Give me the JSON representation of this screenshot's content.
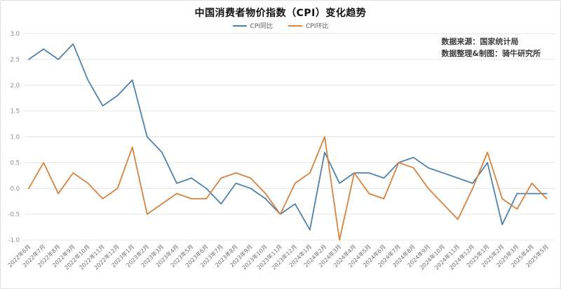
{
  "title": "中国消费者物价指数（CPI）变化趋势",
  "legend": {
    "items": [
      {
        "label": "CPI同比",
        "color": "#4e81ae"
      },
      {
        "label": "CPI环比",
        "color": "#d9823b"
      }
    ]
  },
  "annotations": {
    "source": "数据来源：国家统计局",
    "credit": "数据整理&制图：骑牛研究所"
  },
  "chart_data": {
    "type": "line",
    "title": "中国消费者物价指数（CPI）变化趋势",
    "xlabel": "",
    "ylabel": "",
    "ylim": [
      -1.0,
      3.0
    ],
    "ytick_step": 0.5,
    "yticks": [
      "3.0",
      "2.5",
      "2.0",
      "1.5",
      "1.0",
      "0.5",
      "0.0",
      "-0.5",
      "-1.0"
    ],
    "grid": true,
    "legend_position": "top",
    "categories": [
      "2022年6月",
      "2022年7月",
      "2022年8月",
      "2022年9月",
      "2022年10月",
      "2022年11月",
      "2022年12月",
      "2023年1月",
      "2023年2月",
      "2023年3月",
      "2023年4月",
      "2023年5月",
      "2023年6月",
      "2023年7月",
      "2023年8月",
      "2023年9月",
      "2023年10月",
      "2023年11月",
      "2023年12月",
      "2024年1月",
      "2024年2月",
      "2024年3月",
      "2024年4月",
      "2024年5月",
      "2024年6月",
      "2024年7月",
      "2024年8月",
      "2024年9月",
      "2024年10月",
      "2024年11月",
      "2024年12月",
      "2025年1月",
      "2025年2月",
      "2025年3月",
      "2025年4月",
      "2025年5月"
    ],
    "series": [
      {
        "name": "CPI同比",
        "color": "#4e81ae",
        "values": [
          2.5,
          2.7,
          2.5,
          2.8,
          2.1,
          1.6,
          1.8,
          2.1,
          1.0,
          0.7,
          0.1,
          0.2,
          0.0,
          -0.3,
          0.1,
          0.0,
          -0.2,
          -0.5,
          -0.3,
          -0.8,
          0.7,
          0.1,
          0.3,
          0.3,
          0.2,
          0.5,
          0.6,
          0.4,
          0.3,
          0.2,
          0.1,
          0.5,
          -0.7,
          -0.1,
          -0.1,
          -0.1
        ]
      },
      {
        "name": "CPI环比",
        "color": "#d9823b",
        "values": [
          0.0,
          0.5,
          -0.1,
          0.3,
          0.1,
          -0.2,
          0.0,
          0.8,
          -0.5,
          -0.3,
          -0.1,
          -0.2,
          -0.2,
          0.2,
          0.3,
          0.2,
          -0.1,
          -0.5,
          0.1,
          0.3,
          1.0,
          -1.0,
          0.3,
          -0.1,
          -0.2,
          0.5,
          0.4,
          0.0,
          -0.3,
          -0.6,
          0.0,
          0.7,
          -0.2,
          -0.4,
          0.1,
          -0.2
        ]
      }
    ]
  }
}
